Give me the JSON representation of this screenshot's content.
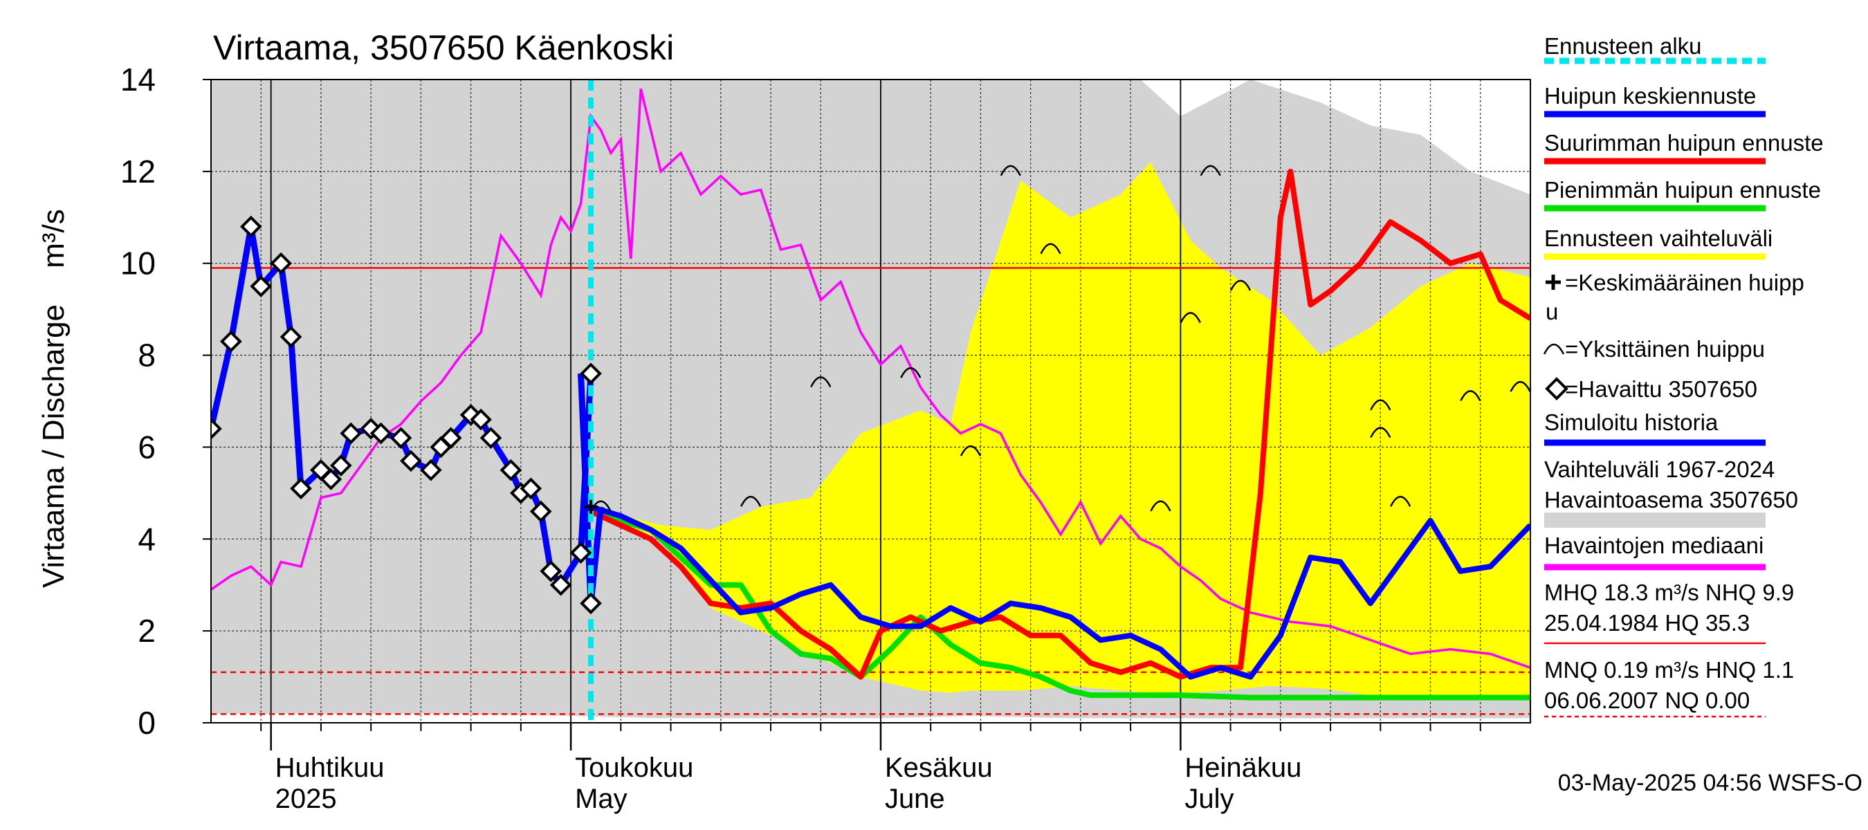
{
  "chart_data": {
    "type": "line",
    "title": "Virtaama, 3507650 Käenkoski",
    "ylabel": "Virtaama / Discharge",
    "yunit": "m³/s",
    "ylim": [
      0,
      14
    ],
    "yticks": [
      0,
      2,
      4,
      6,
      8,
      10,
      12,
      14
    ],
    "xlim": [
      "2025-03-26",
      "2025-08-05"
    ],
    "forecast_start": "2025-05-03",
    "month_labels": [
      {
        "date": "2025-04-01",
        "fi": "Huhtikuu",
        "en": "2025"
      },
      {
        "date": "2025-05-01",
        "fi": "Toukokuu",
        "en": "May"
      },
      {
        "date": "2025-06-01",
        "fi": "Kesäkuu",
        "en": "June"
      },
      {
        "date": "2025-07-01",
        "fi": "Heinäkuu",
        "en": "July"
      }
    ],
    "legend": [
      {
        "label": "Ennusteen alku",
        "color": "#00e5ee",
        "style": "dashed"
      },
      {
        "label": "Huipun keskiennuste",
        "color": "#0000ff",
        "style": "line"
      },
      {
        "label": "Suurimman huipun ennuste",
        "color": "#ff0000",
        "style": "line"
      },
      {
        "label": "Pienimmän huipun ennuste",
        "color": "#00e000",
        "style": "line"
      },
      {
        "label": "Ennusteen vaihteluväli",
        "color": "#ffff00",
        "style": "line"
      },
      {
        "label": "=Keskimääräinen huipp",
        "label2": "u",
        "symbol": "+"
      },
      {
        "label": "=Yksittäinen huippu",
        "symbol": "arc"
      },
      {
        "label": "=Havaittu 3507650",
        "symbol": "diamond"
      },
      {
        "label": "Simuloitu historia",
        "color": "#0000ff",
        "style": "line"
      },
      {
        "label": "Vaihteluväli 1967-2024",
        "label2": " Havaintoasema 3507650",
        "color": "#d3d3d3",
        "style": "line"
      },
      {
        "label": "Havaintojen mediaani",
        "color": "#ff00ff",
        "style": "line"
      },
      {
        "label": "MHQ 18.3 m³/s NHQ  9.9",
        "label2": "25.04.1984 HQ 35.3",
        "color": "#ff0000",
        "style": "line"
      },
      {
        "label": "MNQ 0.19 m³/s HNQ  1.1",
        "label2": "06.06.2007 NQ 0.00",
        "color": "#ff0000",
        "style": "dashed"
      }
    ],
    "reference_lines": [
      {
        "name": "NHQ",
        "value": 9.9,
        "style": "solid",
        "color": "#ff0000"
      },
      {
        "name": "HNQ",
        "value": 1.1,
        "style": "dashed",
        "color": "#ff0000"
      },
      {
        "name": "MNQ",
        "value": 0.19,
        "style": "dashed",
        "color": "#ff0000"
      }
    ],
    "observed": {
      "x": [
        "2025-03-26",
        "2025-03-28",
        "2025-03-30",
        "2025-03-31",
        "2025-04-02",
        "2025-04-03",
        "2025-04-04",
        "2025-04-06",
        "2025-04-07",
        "2025-04-08",
        "2025-04-09",
        "2025-04-11",
        "2025-04-12",
        "2025-04-14",
        "2025-04-15",
        "2025-04-17",
        "2025-04-18",
        "2025-04-19",
        "2025-04-21",
        "2025-04-22",
        "2025-04-23",
        "2025-04-25",
        "2025-04-26",
        "2025-04-27",
        "2025-04-28",
        "2025-04-29",
        "2025-04-30",
        "2025-05-02",
        "2025-05-03"
      ],
      "y": [
        6.4,
        8.3,
        10.8,
        9.5,
        10.0,
        8.4,
        5.1,
        5.5,
        5.3,
        5.6,
        6.3,
        6.4,
        6.3,
        6.2,
        5.7,
        5.5,
        6.0,
        6.2,
        6.7,
        6.6,
        6.2,
        5.5,
        5.0,
        5.1,
        4.6,
        3.3,
        3.0,
        3.7,
        7.6
      ]
    },
    "observed_tail": {
      "x": [
        "2025-05-02",
        "2025-05-03",
        "2025-05-04"
      ],
      "y": [
        7.6,
        2.6,
        4.7
      ]
    },
    "median": {
      "x": [
        "2025-03-26",
        "2025-03-28",
        "2025-03-30",
        "2025-04-01",
        "2025-04-02",
        "2025-04-04",
        "2025-04-06",
        "2025-04-08",
        "2025-04-10",
        "2025-04-12",
        "2025-04-14",
        "2025-04-16",
        "2025-04-18",
        "2025-04-20",
        "2025-04-22",
        "2025-04-24",
        "2025-04-26",
        "2025-04-28",
        "2025-04-29",
        "2025-04-30",
        "2025-05-01",
        "2025-05-02",
        "2025-05-03",
        "2025-05-04",
        "2025-05-05",
        "2025-05-06",
        "2025-05-07",
        "2025-05-08",
        "2025-05-10",
        "2025-05-12",
        "2025-05-14",
        "2025-05-16",
        "2025-05-18",
        "2025-05-20",
        "2025-05-22",
        "2025-05-24",
        "2025-05-26",
        "2025-05-28",
        "2025-05-30",
        "2025-06-01",
        "2025-06-03",
        "2025-06-05",
        "2025-06-07",
        "2025-06-09",
        "2025-06-11",
        "2025-06-13",
        "2025-06-15",
        "2025-06-17",
        "2025-06-19",
        "2025-06-21",
        "2025-06-23",
        "2025-06-25",
        "2025-06-27",
        "2025-06-29",
        "2025-07-01",
        "2025-07-03",
        "2025-07-05",
        "2025-07-08",
        "2025-07-12",
        "2025-07-16",
        "2025-07-20",
        "2025-07-24",
        "2025-07-28",
        "2025-08-01",
        "2025-08-05"
      ],
      "y": [
        2.9,
        3.2,
        3.4,
        3.0,
        3.5,
        3.4,
        4.9,
        5.0,
        5.6,
        6.2,
        6.5,
        7.0,
        7.4,
        8.0,
        8.5,
        10.6,
        10.0,
        9.3,
        10.4,
        11.0,
        10.7,
        11.3,
        13.2,
        12.9,
        12.4,
        12.7,
        10.1,
        13.8,
        12.0,
        12.4,
        11.5,
        11.9,
        11.5,
        11.6,
        10.3,
        10.4,
        9.2,
        9.6,
        8.5,
        7.8,
        8.2,
        7.3,
        6.7,
        6.3,
        6.5,
        6.3,
        5.4,
        4.8,
        4.1,
        4.8,
        3.9,
        4.5,
        4.0,
        3.8,
        3.4,
        3.1,
        2.7,
        2.4,
        2.2,
        2.1,
        1.8,
        1.5,
        1.6,
        1.5,
        1.2
      ]
    },
    "range_band": {
      "x": [
        "2025-05-03",
        "2025-05-10",
        "2025-05-15",
        "2025-05-20",
        "2025-05-25",
        "2025-05-30",
        "2025-06-05",
        "2025-06-08",
        "2025-06-10",
        "2025-06-15",
        "2025-06-20",
        "2025-06-25",
        "2025-06-28",
        "2025-07-02",
        "2025-07-05",
        "2025-07-10",
        "2025-07-15",
        "2025-07-20",
        "2025-07-25",
        "2025-07-30",
        "2025-08-05"
      ],
      "upper": [
        4.7,
        4.3,
        4.2,
        4.7,
        4.9,
        6.3,
        6.8,
        6.5,
        8.5,
        11.8,
        11.0,
        11.5,
        12.2,
        10.5,
        9.9,
        9.2,
        8.0,
        8.6,
        9.5,
        10.0,
        9.7
      ],
      "lower": [
        4.6,
        4.0,
        2.5,
        2.0,
        1.5,
        1.0,
        0.7,
        0.65,
        0.7,
        0.7,
        0.8,
        0.7,
        0.65,
        0.65,
        0.7,
        0.8,
        0.75,
        0.6,
        0.6,
        0.6,
        0.6
      ]
    },
    "history_band": {
      "x": [
        "2025-03-26",
        "2025-04-15",
        "2025-05-01",
        "2025-05-10",
        "2025-05-20",
        "2025-06-01",
        "2025-06-10",
        "2025-06-20",
        "2025-06-27",
        "2025-07-01",
        "2025-07-08",
        "2025-07-15",
        "2025-07-20",
        "2025-07-25",
        "2025-07-30",
        "2025-08-05"
      ],
      "upper": [
        14,
        14,
        14,
        14,
        14,
        14,
        14,
        14,
        14,
        13.2,
        14,
        13.5,
        13.0,
        12.8,
        12.0,
        11.5
      ],
      "lower": [
        0.2,
        0.2,
        0.15,
        0.1,
        0.1,
        0.1,
        0.15,
        0.1,
        0.1,
        0.1,
        0.1,
        0.1,
        0.1,
        0.1,
        0.1,
        0.1
      ]
    },
    "series": [
      {
        "name": "Huipun keskiennuste",
        "x": [
          "2025-05-03",
          "2025-05-06",
          "2025-05-09",
          "2025-05-12",
          "2025-05-15",
          "2025-05-18",
          "2025-05-21",
          "2025-05-24",
          "2025-05-27",
          "2025-05-30",
          "2025-06-02",
          "2025-06-05",
          "2025-06-08",
          "2025-06-11",
          "2025-06-14",
          "2025-06-17",
          "2025-06-20",
          "2025-06-23",
          "2025-06-26",
          "2025-06-29",
          "2025-07-02",
          "2025-07-05",
          "2025-07-08",
          "2025-07-11",
          "2025-07-14",
          "2025-07-17",
          "2025-07-20",
          "2025-07-23",
          "2025-07-26",
          "2025-07-29",
          "2025-08-01",
          "2025-08-05"
        ],
        "y": [
          4.7,
          4.5,
          4.2,
          3.8,
          3.1,
          2.4,
          2.5,
          2.8,
          3.0,
          2.3,
          2.1,
          2.1,
          2.5,
          2.2,
          2.6,
          2.5,
          2.3,
          1.8,
          1.9,
          1.6,
          1.0,
          1.2,
          1.0,
          1.9,
          3.6,
          3.5,
          2.6,
          3.5,
          4.4,
          3.3,
          3.4,
          4.3
        ]
      },
      {
        "name": "Suurimman huipun ennuste",
        "x": [
          "2025-05-03",
          "2025-05-06",
          "2025-05-09",
          "2025-05-12",
          "2025-05-15",
          "2025-05-18",
          "2025-05-21",
          "2025-05-24",
          "2025-05-27",
          "2025-05-30",
          "2025-06-01",
          "2025-06-04",
          "2025-06-07",
          "2025-06-10",
          "2025-06-13",
          "2025-06-16",
          "2025-06-19",
          "2025-06-22",
          "2025-06-25",
          "2025-06-28",
          "2025-07-01",
          "2025-07-04",
          "2025-07-07",
          "2025-07-09",
          "2025-07-11",
          "2025-07-12",
          "2025-07-14",
          "2025-07-16",
          "2025-07-19",
          "2025-07-22",
          "2025-07-25",
          "2025-07-28",
          "2025-07-31",
          "2025-08-02",
          "2025-08-05"
        ],
        "y": [
          4.6,
          4.3,
          4.0,
          3.4,
          2.6,
          2.5,
          2.6,
          2.0,
          1.6,
          1.0,
          2.0,
          2.3,
          2.0,
          2.2,
          2.3,
          1.9,
          1.9,
          1.3,
          1.1,
          1.3,
          1.0,
          1.2,
          1.2,
          5.0,
          11.0,
          12.0,
          9.1,
          9.4,
          10.0,
          10.9,
          10.5,
          10.0,
          10.2,
          9.2,
          8.8
        ]
      },
      {
        "name": "Pienimmän huipun ennuste",
        "x": [
          "2025-05-03",
          "2025-05-06",
          "2025-05-09",
          "2025-05-12",
          "2025-05-15",
          "2025-05-18",
          "2025-05-21",
          "2025-05-24",
          "2025-05-27",
          "2025-05-30",
          "2025-06-02",
          "2025-06-05",
          "2025-06-08",
          "2025-06-11",
          "2025-06-14",
          "2025-06-17",
          "2025-06-20",
          "2025-06-22",
          "2025-06-25",
          "2025-06-28",
          "2025-07-01",
          "2025-07-08",
          "2025-07-15",
          "2025-07-22",
          "2025-07-29",
          "2025-08-05"
        ],
        "y": [
          4.6,
          4.4,
          4.2,
          3.6,
          3.0,
          3.0,
          2.0,
          1.5,
          1.4,
          1.0,
          1.6,
          2.3,
          1.7,
          1.3,
          1.2,
          1.0,
          0.7,
          0.6,
          0.6,
          0.6,
          0.6,
          0.55,
          0.55,
          0.55,
          0.55,
          0.55
        ]
      }
    ],
    "peak_markers": {
      "x": [
        "2025-05-04",
        "2025-05-19",
        "2025-05-26",
        "2025-06-04",
        "2025-06-10",
        "2025-06-14",
        "2025-06-18",
        "2025-06-29",
        "2025-07-02",
        "2025-07-04",
        "2025-07-07",
        "2025-07-21",
        "2025-07-21",
        "2025-07-23",
        "2025-07-30",
        "2025-08-04"
      ],
      "y": [
        4.7,
        4.8,
        7.4,
        7.6,
        5.9,
        12.0,
        10.3,
        4.7,
        8.8,
        12.0,
        9.5,
        6.9,
        6.3,
        4.8,
        7.1,
        7.3
      ]
    },
    "mean_peak": {
      "x": "2025-05-03",
      "y": 4.7
    },
    "footer_timestamp": "03-May-2025 04:56 WSFS-O"
  }
}
